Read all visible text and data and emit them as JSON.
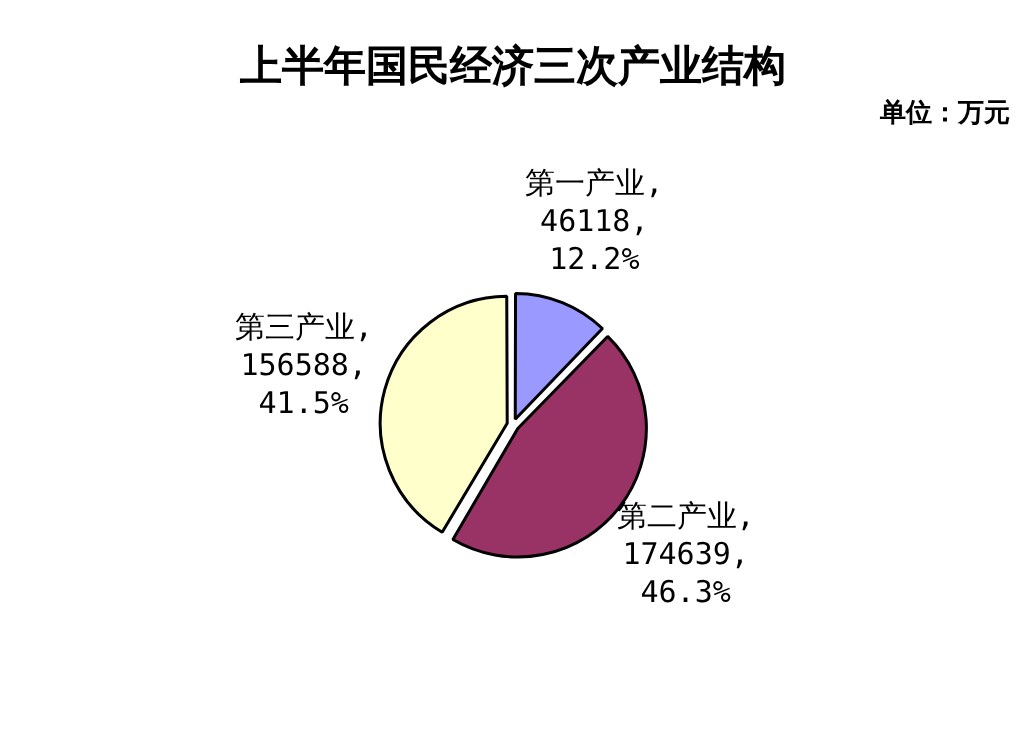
{
  "chart_data": {
    "type": "pie",
    "title": "上半年国民经济三次产业结构",
    "subtitle": "单位：万元",
    "categories": [
      "第一产业",
      "第二产业",
      "第三产业"
    ],
    "values": [
      46118,
      174639,
      156588
    ],
    "colors": [
      "#9999ff",
      "#993366",
      "#ffffcc"
    ],
    "value_labels": [
      ",\n46118,\n12.2%",
      ",\n174639,\n46.3%",
      ",\n156588,\n41.5%"
    ],
    "legend": false
  }
}
